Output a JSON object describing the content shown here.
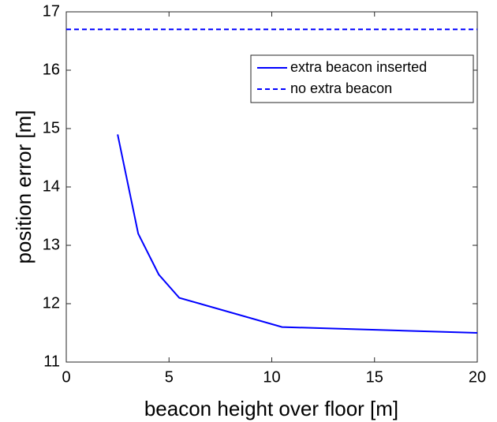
{
  "chart_data": {
    "type": "line",
    "xlabel": "beacon height over floor [m]",
    "ylabel": "position error [m]",
    "xlim": [
      0,
      20
    ],
    "xticks": [
      0,
      5,
      10,
      15,
      20
    ],
    "ylim": [
      11,
      17
    ],
    "yticks": [
      11,
      12,
      13,
      14,
      15,
      16,
      17
    ],
    "legend": "upper right",
    "series": [
      {
        "name": "extra beacon inserted",
        "color": "#0000ff",
        "linestyle": "solid",
        "x": [
          2.5,
          3.5,
          4.5,
          5.5,
          10.5,
          20
        ],
        "values": [
          14.9,
          13.2,
          12.5,
          12.1,
          11.6,
          11.5
        ]
      },
      {
        "name": "no extra beacon",
        "color": "#0000ff",
        "linestyle": "dashed",
        "x": [
          0,
          20
        ],
        "values": [
          16.7,
          16.7
        ]
      }
    ]
  }
}
